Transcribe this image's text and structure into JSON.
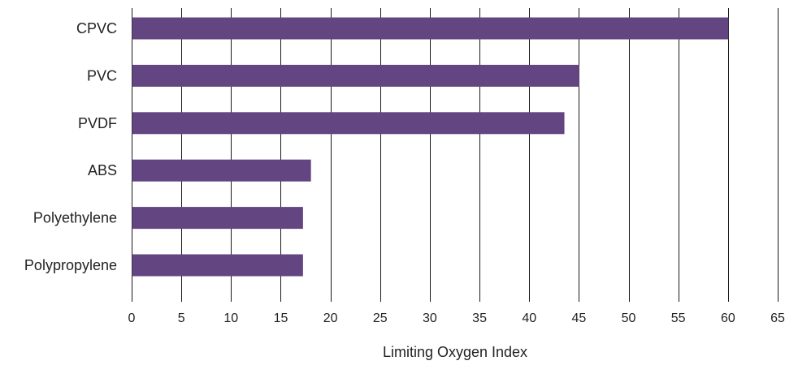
{
  "chart_data": {
    "type": "bar",
    "orientation": "horizontal",
    "categories": [
      "CPVC",
      "PVC",
      "PVDF",
      "ABS",
      "Polyethylene",
      "Polypropylene"
    ],
    "values": [
      60,
      45,
      43.5,
      18,
      17.2,
      17.2
    ],
    "xlabel": "Limiting Oxygen Index",
    "ylabel": "",
    "xlim": [
      0,
      65
    ],
    "xticks": [
      0,
      5,
      10,
      15,
      20,
      25,
      30,
      35,
      40,
      45,
      50,
      55,
      60,
      65
    ],
    "grid": "vertical",
    "legend": "none",
    "bar_color": "#634581"
  }
}
